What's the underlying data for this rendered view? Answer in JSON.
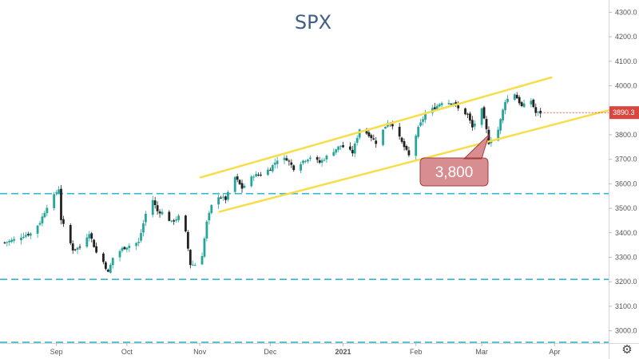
{
  "chart_data": {
    "type": "candlestick",
    "title": "SPX",
    "ylim": [
      2950,
      4350
    ],
    "y_ticks": [
      "4300.0",
      "4200.0",
      "4100.0",
      "4000.0",
      "3900.0",
      "3800.0",
      "3700.0",
      "3600.0",
      "3500.0",
      "3400.0",
      "3300.0",
      "3200.0",
      "3100.0",
      "3000.0"
    ],
    "y_tick_values": [
      4300,
      4200,
      4100,
      4000,
      3900,
      3800,
      3700,
      3600,
      3500,
      3400,
      3300,
      3200,
      3100,
      3000
    ],
    "x_ticks": [
      "Sep",
      "Oct",
      "Nov",
      "Dec",
      "2021",
      "Feb",
      "Mar",
      "Apr"
    ],
    "x_tick_dates": [
      "2020-09-01",
      "2020-10-01",
      "2020-11-01",
      "2020-12-01",
      "2021-01-01",
      "2021-02-01",
      "2021-03-01",
      "2021-04-01"
    ],
    "x_range": [
      "2020-08-08",
      "2021-04-24"
    ],
    "last_price": "3890.3",
    "last_price_value": 3890.3,
    "close_series": [
      [
        "2020-08-10",
        3360
      ],
      [
        "2020-08-14",
        3372
      ],
      [
        "2020-08-18",
        3389
      ],
      [
        "2020-08-21",
        3397
      ],
      [
        "2020-08-25",
        3443
      ],
      [
        "2020-08-28",
        3508
      ],
      [
        "2020-09-02",
        3580
      ],
      [
        "2020-09-03",
        3455
      ],
      [
        "2020-09-08",
        3332
      ],
      [
        "2020-09-11",
        3341
      ],
      [
        "2020-09-15",
        3401
      ],
      [
        "2020-09-18",
        3319
      ],
      [
        "2020-09-21",
        3281
      ],
      [
        "2020-09-23",
        3237
      ],
      [
        "2020-09-25",
        3298
      ],
      [
        "2020-09-29",
        3335
      ],
      [
        "2020-10-02",
        3348
      ],
      [
        "2020-10-06",
        3361
      ],
      [
        "2020-10-09",
        3477
      ],
      [
        "2020-10-12",
        3534
      ],
      [
        "2020-10-14",
        3488
      ],
      [
        "2020-10-16",
        3483
      ],
      [
        "2020-10-20",
        3443
      ],
      [
        "2020-10-23",
        3465
      ],
      [
        "2020-10-26",
        3400
      ],
      [
        "2020-10-28",
        3271
      ],
      [
        "2020-10-30",
        3270
      ],
      [
        "2020-11-02",
        3310
      ],
      [
        "2020-11-04",
        3443
      ],
      [
        "2020-11-06",
        3509
      ],
      [
        "2020-11-09",
        3550
      ],
      [
        "2020-11-12",
        3537
      ],
      [
        "2020-11-16",
        3627
      ],
      [
        "2020-11-19",
        3582
      ],
      [
        "2020-11-24",
        3635
      ],
      [
        "2020-11-27",
        3638
      ],
      [
        "2020-12-01",
        3662
      ],
      [
        "2020-12-04",
        3699
      ],
      [
        "2020-12-08",
        3702
      ],
      [
        "2020-12-11",
        3663
      ],
      [
        "2020-12-15",
        3694
      ],
      [
        "2020-12-18",
        3709
      ],
      [
        "2020-12-22",
        3687
      ],
      [
        "2020-12-28",
        3735
      ],
      [
        "2020-12-31",
        3756
      ],
      [
        "2021-01-05",
        3727
      ],
      [
        "2021-01-08",
        3824
      ],
      [
        "2021-01-12",
        3801
      ],
      [
        "2021-01-15",
        3768
      ],
      [
        "2021-01-20",
        3852
      ],
      [
        "2021-01-22",
        3841
      ],
      [
        "2021-01-27",
        3750
      ],
      [
        "2021-01-29",
        3714
      ],
      [
        "2021-02-02",
        3826
      ],
      [
        "2021-02-05",
        3886
      ],
      [
        "2021-02-09",
        3911
      ],
      [
        "2021-02-12",
        3934
      ],
      [
        "2021-02-17",
        3931
      ],
      [
        "2021-02-19",
        3906
      ],
      [
        "2021-02-23",
        3881
      ],
      [
        "2021-02-25",
        3829
      ],
      [
        "2021-03-01",
        3901
      ],
      [
        "2021-03-03",
        3819
      ],
      [
        "2021-03-04",
        3768
      ],
      [
        "2021-03-08",
        3821
      ],
      [
        "2021-03-11",
        3939
      ],
      [
        "2021-03-15",
        3968
      ],
      [
        "2021-03-18",
        3915
      ],
      [
        "2021-03-22",
        3940
      ],
      [
        "2021-03-24",
        3889
      ],
      [
        "2021-03-26",
        3890
      ]
    ],
    "horizontal_levels": [
      3560,
      3210,
      2953
    ],
    "channel": {
      "upper": [
        [
          "2020-11-01",
          3625
        ],
        [
          "2021-03-31",
          4035
        ]
      ],
      "lower": [
        [
          "2020-11-09",
          3485
        ],
        [
          "2021-04-24",
          3900
        ]
      ]
    },
    "annotation": {
      "text": "3,800",
      "value": 3800,
      "date": "2021-03-04"
    },
    "colors": {
      "up": "#26a69a",
      "down": "#222222",
      "channel": "#f7dd4a",
      "levels": "#35b6d1",
      "last_price": "#d9453f",
      "annotation_fill": "#d6878a",
      "annotation_stroke": "#a63b3d"
    }
  }
}
